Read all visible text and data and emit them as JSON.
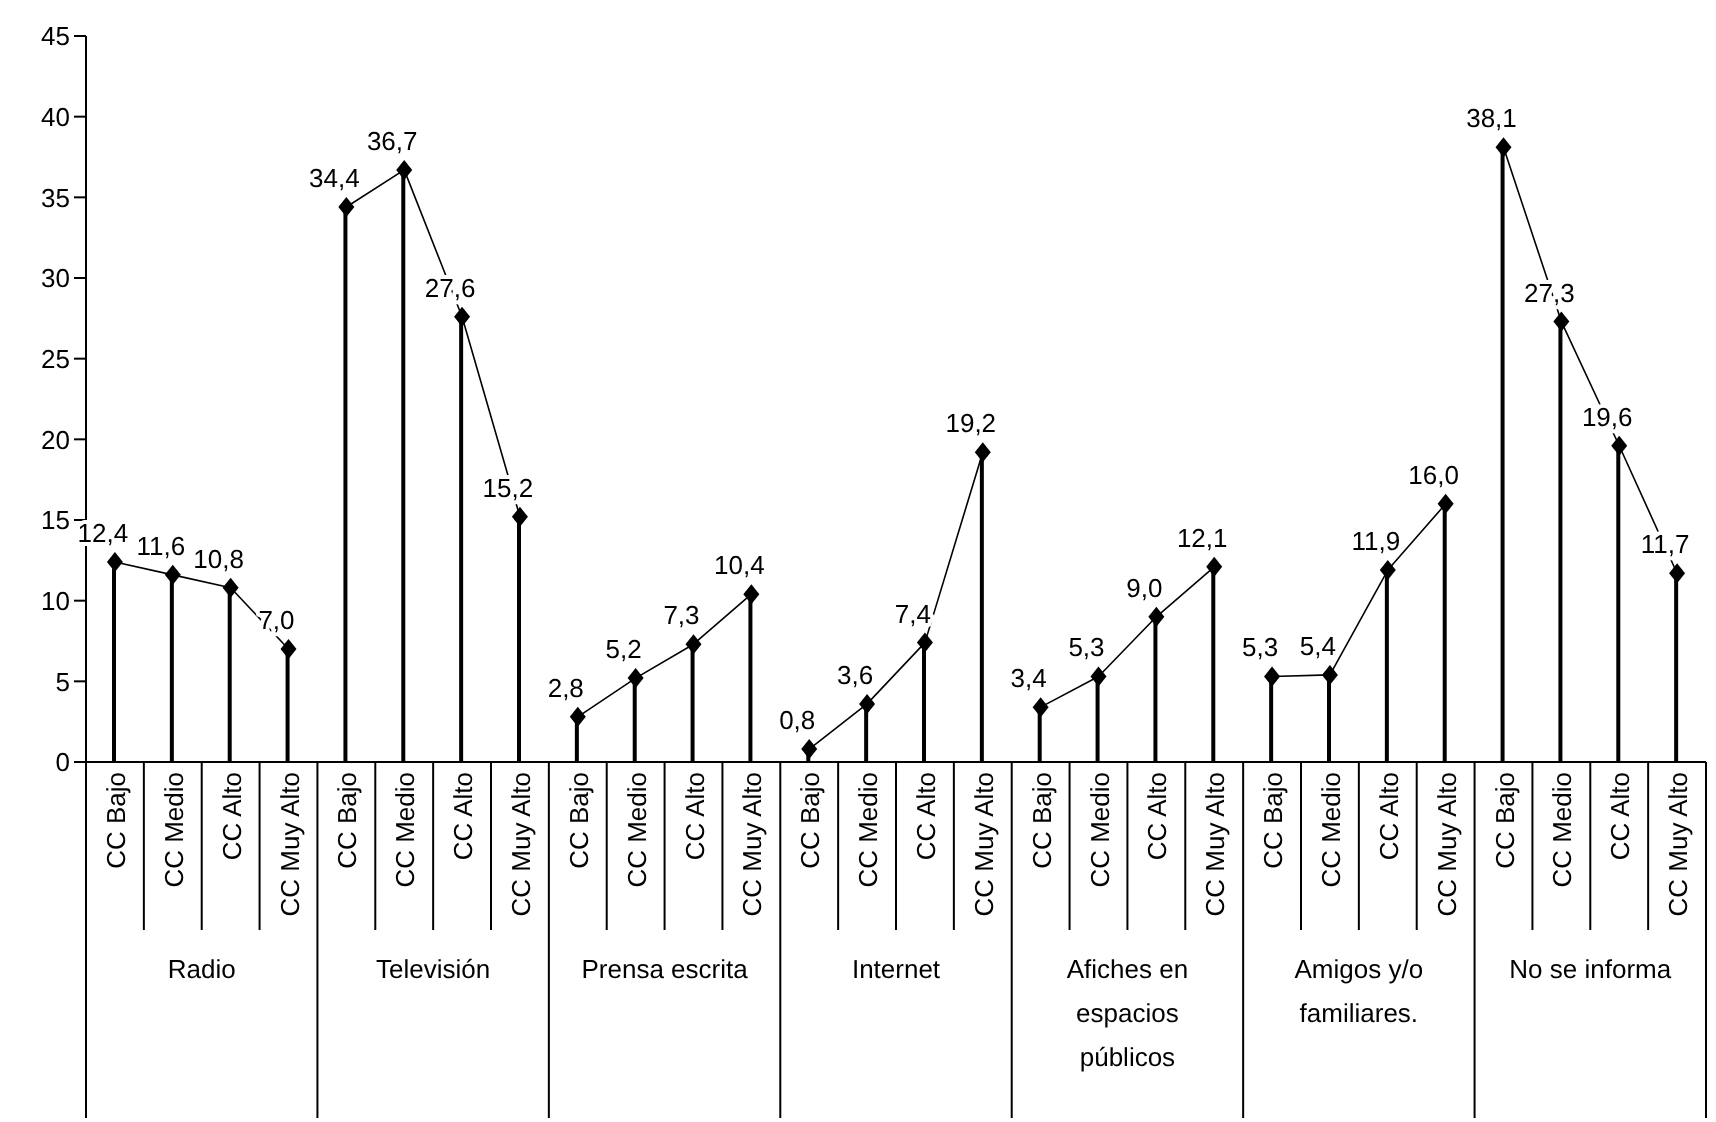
{
  "chart_data": {
    "type": "lollipop",
    "categories": [
      "CC Bajo",
      "CC Medio",
      "CC Alto",
      "CC Muy Alto",
      "CC Bajo",
      "CC Medio",
      "CC Alto",
      "CC Muy Alto",
      "CC Bajo",
      "CC Medio",
      "CC Alto",
      "CC Muy Alto",
      "CC Bajo",
      "CC Medio",
      "CC Alto",
      "CC Muy Alto",
      "CC Bajo",
      "CC Medio",
      "CC Alto",
      "CC Muy Alto",
      "CC Bajo",
      "CC Medio",
      "CC Alto",
      "CC Muy Alto",
      "CC Bajo",
      "CC Medio",
      "CC Alto",
      "CC Muy Alto"
    ],
    "series": [
      {
        "color": "#000000",
        "values": [
          12.4,
          11.6,
          10.8,
          7.0,
          null,
          null,
          null,
          null,
          null,
          null,
          null,
          null,
          null,
          null,
          null,
          null,
          null,
          null,
          null,
          null,
          null,
          null,
          null,
          null,
          null,
          null,
          null,
          null
        ],
        "value_labels": [
          "12,4",
          "11,6",
          "10,8",
          "7,0",
          null,
          null,
          null,
          null,
          null,
          null,
          null,
          null,
          null,
          null,
          null,
          null,
          null,
          null,
          null,
          null,
          null,
          null,
          null,
          null,
          null,
          null,
          null,
          null
        ]
      },
      {
        "color": "#000000",
        "values": [
          null,
          null,
          null,
          null,
          34.4,
          36.7,
          27.6,
          15.2,
          null,
          null,
          null,
          null,
          null,
          null,
          null,
          null,
          null,
          null,
          null,
          null,
          null,
          null,
          null,
          null,
          null,
          null,
          null,
          null
        ],
        "value_labels": [
          null,
          null,
          null,
          null,
          "34,4",
          "36,7",
          "27,6",
          "15,2",
          null,
          null,
          null,
          null,
          null,
          null,
          null,
          null,
          null,
          null,
          null,
          null,
          null,
          null,
          null,
          null,
          null,
          null,
          null,
          null
        ]
      },
      {
        "color": "#000000",
        "values": [
          null,
          null,
          null,
          null,
          null,
          null,
          null,
          null,
          2.8,
          5.2,
          7.3,
          10.4,
          null,
          null,
          null,
          null,
          null,
          null,
          null,
          null,
          null,
          null,
          null,
          null,
          null,
          null,
          null,
          null
        ],
        "value_labels": [
          null,
          null,
          null,
          null,
          null,
          null,
          null,
          null,
          "2,8",
          "5,2",
          "7,3",
          "10,4",
          null,
          null,
          null,
          null,
          null,
          null,
          null,
          null,
          null,
          null,
          null,
          null,
          null,
          null,
          null,
          null
        ]
      },
      {
        "color": "#000000",
        "values": [
          null,
          null,
          null,
          null,
          null,
          null,
          null,
          null,
          null,
          null,
          null,
          null,
          0.8,
          3.6,
          7.4,
          19.2,
          null,
          null,
          null,
          null,
          null,
          null,
          null,
          null,
          null,
          null,
          null,
          null
        ],
        "value_labels": [
          null,
          null,
          null,
          null,
          null,
          null,
          null,
          null,
          null,
          null,
          null,
          null,
          "0,8",
          "3,6",
          "7,4",
          "19,2",
          null,
          null,
          null,
          null,
          null,
          null,
          null,
          null,
          null,
          null,
          null,
          null
        ]
      },
      {
        "color": "#000000",
        "values": [
          null,
          null,
          null,
          null,
          null,
          null,
          null,
          null,
          null,
          null,
          null,
          null,
          null,
          null,
          null,
          null,
          3.4,
          5.3,
          9.0,
          12.1,
          null,
          null,
          null,
          null,
          null,
          null,
          null,
          null
        ],
        "value_labels": [
          null,
          null,
          null,
          null,
          null,
          null,
          null,
          null,
          null,
          null,
          null,
          null,
          null,
          null,
          null,
          null,
          "3,4",
          "5,3",
          "9,0",
          "12,1",
          null,
          null,
          null,
          null,
          null,
          null,
          null,
          null
        ]
      },
      {
        "color": "#000000",
        "values": [
          null,
          null,
          null,
          null,
          null,
          null,
          null,
          null,
          null,
          null,
          null,
          null,
          null,
          null,
          null,
          null,
          null,
          null,
          null,
          null,
          5.3,
          5.4,
          11.9,
          16.0,
          null,
          null,
          null,
          null
        ],
        "value_labels": [
          null,
          null,
          null,
          null,
          null,
          null,
          null,
          null,
          null,
          null,
          null,
          null,
          null,
          null,
          null,
          null,
          null,
          null,
          null,
          null,
          "5,3",
          "5,4",
          "11,9",
          "16,0",
          null,
          null,
          null,
          null
        ]
      },
      {
        "color": "#000000",
        "values": [
          null,
          null,
          null,
          null,
          null,
          null,
          null,
          null,
          null,
          null,
          null,
          null,
          null,
          null,
          null,
          null,
          null,
          null,
          null,
          null,
          null,
          null,
          null,
          null,
          38.1,
          27.3,
          19.6,
          11.7
        ],
        "value_labels": [
          null,
          null,
          null,
          null,
          null,
          null,
          null,
          null,
          null,
          null,
          null,
          null,
          null,
          null,
          null,
          null,
          null,
          null,
          null,
          null,
          null,
          null,
          null,
          null,
          "38,1",
          "27,3",
          "19,6",
          "11,7"
        ]
      }
    ],
    "annotations": [
      "Radio",
      "Televisión",
      "Prensa escrita",
      "Internet",
      "Afiches en espacios públicos",
      "Amigos y/o familiares.",
      "No se informa"
    ],
    "ylim": [
      0,
      45
    ],
    "yticks": [
      0,
      5,
      10,
      15,
      20,
      25,
      30,
      35,
      40,
      45
    ],
    "marker": "diamond"
  }
}
